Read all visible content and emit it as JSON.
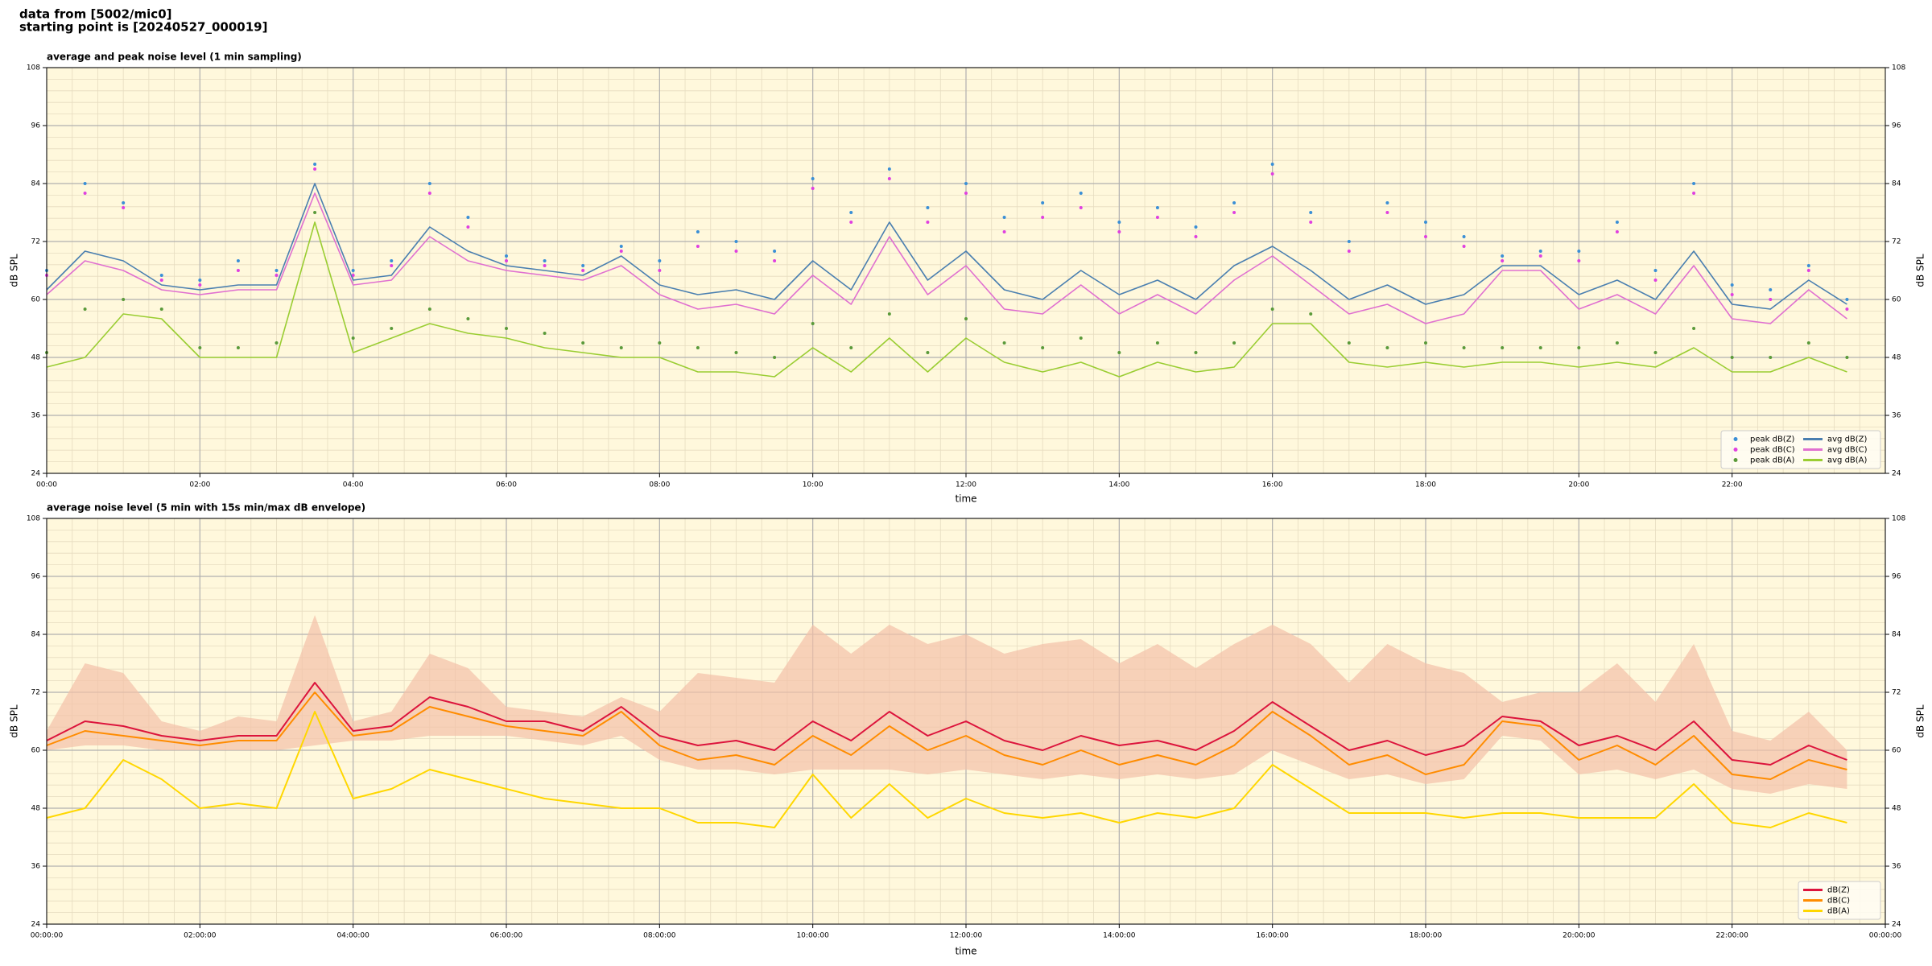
{
  "header": {
    "lines": [
      "data from [5002/mic0]",
      "starting point is [20240527_000019]"
    ]
  },
  "chart_data": [
    {
      "type": "line",
      "title": "average and peak noise level (1 min sampling)",
      "xlabel": "time",
      "ylabel": "dB SPL",
      "background": "#fff8dc",
      "grid": true,
      "minor_grid": true,
      "legend": {
        "loc": "lower right",
        "ncol": 2
      },
      "xlim": [
        "00:00",
        "24:00"
      ],
      "xticks": [
        "00:00",
        "02:00",
        "04:00",
        "06:00",
        "08:00",
        "10:00",
        "12:00",
        "14:00",
        "16:00",
        "18:00",
        "20:00",
        "22:00"
      ],
      "ylim": [
        24,
        108
      ],
      "yticks": [
        24,
        36,
        48,
        60,
        72,
        84,
        96,
        108
      ],
      "x": [
        "00:00",
        "00:30",
        "01:00",
        "01:30",
        "02:00",
        "02:30",
        "03:00",
        "03:30",
        "04:00",
        "04:30",
        "05:00",
        "05:30",
        "06:00",
        "06:30",
        "07:00",
        "07:30",
        "08:00",
        "08:30",
        "09:00",
        "09:30",
        "10:00",
        "10:30",
        "11:00",
        "11:30",
        "12:00",
        "12:30",
        "13:00",
        "13:30",
        "14:00",
        "14:30",
        "15:00",
        "15:30",
        "16:00",
        "16:30",
        "17:00",
        "17:30",
        "18:00",
        "18:30",
        "19:00",
        "19:30",
        "20:00",
        "20:30",
        "21:00",
        "21:30",
        "22:00",
        "22:30",
        "23:00",
        "23:30"
      ],
      "series": [
        {
          "name": "peak dB(Z)",
          "kind": "scatter",
          "color": "#3a8fd6",
          "values": [
            66,
            84,
            80,
            65,
            64,
            68,
            66,
            88,
            66,
            68,
            84,
            77,
            69,
            68,
            67,
            71,
            68,
            74,
            72,
            70,
            85,
            78,
            87,
            79,
            84,
            77,
            80,
            82,
            76,
            79,
            75,
            80,
            88,
            78,
            72,
            80,
            76,
            73,
            69,
            70,
            70,
            76,
            66,
            84,
            63,
            62,
            67,
            60
          ]
        },
        {
          "name": "peak dB(C)",
          "kind": "scatter",
          "color": "#e040e0",
          "values": [
            65,
            82,
            79,
            64,
            63,
            66,
            65,
            87,
            65,
            67,
            82,
            75,
            68,
            67,
            66,
            70,
            66,
            71,
            70,
            68,
            83,
            76,
            85,
            76,
            82,
            74,
            77,
            79,
            74,
            77,
            73,
            78,
            86,
            76,
            70,
            78,
            73,
            71,
            68,
            69,
            68,
            74,
            64,
            82,
            61,
            60,
            66,
            58
          ]
        },
        {
          "name": "peak dB(A)",
          "kind": "scatter",
          "color": "#5a9a3a",
          "values": [
            49,
            58,
            60,
            58,
            50,
            50,
            51,
            78,
            52,
            54,
            58,
            56,
            54,
            53,
            51,
            50,
            51,
            50,
            49,
            48,
            55,
            50,
            57,
            49,
            56,
            51,
            50,
            52,
            49,
            51,
            49,
            51,
            58,
            57,
            51,
            50,
            51,
            50,
            50,
            50,
            50,
            51,
            49,
            54,
            48,
            48,
            51,
            48
          ]
        },
        {
          "name": "avg dB(Z)",
          "kind": "line",
          "color": "#4a7fb0",
          "values": [
            62,
            70,
            68,
            63,
            62,
            63,
            63,
            84,
            64,
            65,
            75,
            70,
            67,
            66,
            65,
            69,
            63,
            61,
            62,
            60,
            68,
            62,
            76,
            64,
            70,
            62,
            60,
            66,
            61,
            64,
            60,
            67,
            71,
            66,
            60,
            63,
            59,
            61,
            67,
            67,
            61,
            64,
            60,
            70,
            59,
            58,
            64,
            59
          ]
        },
        {
          "name": "avg dB(C)",
          "kind": "line",
          "color": "#e070d0",
          "values": [
            61,
            68,
            66,
            62,
            61,
            62,
            62,
            82,
            63,
            64,
            73,
            68,
            66,
            65,
            64,
            67,
            61,
            58,
            59,
            57,
            65,
            59,
            73,
            61,
            67,
            58,
            57,
            63,
            57,
            61,
            57,
            64,
            69,
            63,
            57,
            59,
            55,
            57,
            66,
            66,
            58,
            61,
            57,
            67,
            56,
            55,
            62,
            56
          ]
        },
        {
          "name": "avg dB(A)",
          "kind": "line",
          "color": "#9acd32",
          "values": [
            46,
            48,
            57,
            56,
            48,
            48,
            48,
            76,
            49,
            52,
            55,
            53,
            52,
            50,
            49,
            48,
            48,
            45,
            45,
            44,
            50,
            45,
            52,
            45,
            52,
            47,
            45,
            47,
            44,
            47,
            45,
            46,
            55,
            55,
            47,
            46,
            47,
            46,
            47,
            47,
            46,
            47,
            46,
            50,
            45,
            45,
            48,
            45
          ]
        }
      ]
    },
    {
      "type": "line",
      "title": "average noise level (5 min with 15s min/max dB envelope)",
      "xlabel": "time",
      "ylabel": "dB SPL",
      "background": "#fff8dc",
      "grid": true,
      "minor_grid": true,
      "legend": {
        "loc": "lower right",
        "ncol": 1
      },
      "xlim": [
        "00:00:00",
        "24:00:00"
      ],
      "xticks": [
        "00:00:00",
        "02:00:00",
        "04:00:00",
        "06:00:00",
        "08:00:00",
        "10:00:00",
        "12:00:00",
        "14:00:00",
        "16:00:00",
        "18:00:00",
        "20:00:00",
        "22:00:00",
        {
          "value": "24:00:00",
          "label": "00:00:00"
        }
      ],
      "ylim": [
        24,
        108
      ],
      "yticks": [
        24,
        36,
        48,
        60,
        72,
        84,
        96,
        108
      ],
      "x": [
        "00:00:00",
        "00:30:00",
        "01:00:00",
        "01:30:00",
        "02:00:00",
        "02:30:00",
        "03:00:00",
        "03:30:00",
        "04:00:00",
        "04:30:00",
        "05:00:00",
        "05:30:00",
        "06:00:00",
        "06:30:00",
        "07:00:00",
        "07:30:00",
        "08:00:00",
        "08:30:00",
        "09:00:00",
        "09:30:00",
        "10:00:00",
        "10:30:00",
        "11:00:00",
        "11:30:00",
        "12:00:00",
        "12:30:00",
        "13:00:00",
        "13:30:00",
        "14:00:00",
        "14:30:00",
        "15:00:00",
        "15:30:00",
        "16:00:00",
        "16:30:00",
        "17:00:00",
        "17:30:00",
        "18:00:00",
        "18:30:00",
        "19:00:00",
        "19:30:00",
        "20:00:00",
        "20:30:00",
        "21:00:00",
        "21:30:00",
        "22:00:00",
        "22:30:00",
        "23:00:00",
        "23:30:00"
      ],
      "envelope": {
        "color": "#f4c0a8",
        "min": [
          60,
          61,
          61,
          60,
          60,
          60,
          60,
          61,
          62,
          62,
          63,
          63,
          63,
          62,
          61,
          63,
          58,
          56,
          56,
          55,
          56,
          56,
          56,
          55,
          56,
          55,
          54,
          55,
          54,
          55,
          54,
          55,
          60,
          57,
          54,
          55,
          53,
          54,
          63,
          62,
          55,
          56,
          54,
          56,
          52,
          51,
          53,
          52
        ],
        "max": [
          64,
          78,
          76,
          66,
          64,
          67,
          66,
          88,
          66,
          68,
          80,
          77,
          69,
          68,
          67,
          71,
          68,
          76,
          75,
          74,
          86,
          80,
          86,
          82,
          84,
          80,
          82,
          83,
          78,
          82,
          77,
          82,
          86,
          82,
          74,
          82,
          78,
          76,
          70,
          72,
          72,
          78,
          70,
          82,
          64,
          62,
          68,
          60
        ]
      },
      "series": [
        {
          "name": "dB(Z)",
          "kind": "line",
          "color": "#dc143c",
          "values": [
            62,
            66,
            65,
            63,
            62,
            63,
            63,
            74,
            64,
            65,
            71,
            69,
            66,
            66,
            64,
            69,
            63,
            61,
            62,
            60,
            66,
            62,
            68,
            63,
            66,
            62,
            60,
            63,
            61,
            62,
            60,
            64,
            70,
            65,
            60,
            62,
            59,
            61,
            67,
            66,
            61,
            63,
            60,
            66,
            58,
            57,
            61,
            58
          ]
        },
        {
          "name": "dB(C)",
          "kind": "line",
          "color": "#ff8c00",
          "values": [
            61,
            64,
            63,
            62,
            61,
            62,
            62,
            72,
            63,
            64,
            69,
            67,
            65,
            64,
            63,
            68,
            61,
            58,
            59,
            57,
            63,
            59,
            65,
            60,
            63,
            59,
            57,
            60,
            57,
            59,
            57,
            61,
            68,
            63,
            57,
            59,
            55,
            57,
            66,
            65,
            58,
            61,
            57,
            63,
            55,
            54,
            58,
            56
          ]
        },
        {
          "name": "dB(A)",
          "kind": "line",
          "color": "#ffd700",
          "values": [
            46,
            48,
            58,
            54,
            48,
            49,
            48,
            68,
            50,
            52,
            56,
            54,
            52,
            50,
            49,
            48,
            48,
            45,
            45,
            44,
            55,
            46,
            53,
            46,
            50,
            47,
            46,
            47,
            45,
            47,
            46,
            48,
            57,
            52,
            47,
            47,
            47,
            46,
            47,
            47,
            46,
            46,
            46,
            53,
            45,
            44,
            47,
            45
          ]
        }
      ]
    }
  ]
}
